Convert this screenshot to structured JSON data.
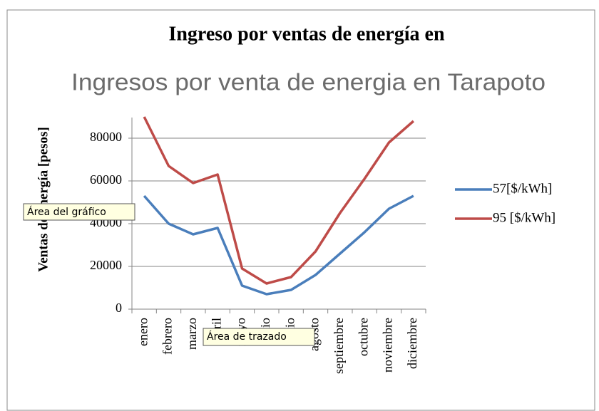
{
  "chart_data": {
    "type": "line",
    "title": "Ingreso por ventas de energía en",
    "annotations": [
      "Ingresos por venta de energia en Tarapoto"
    ],
    "ylabel": "Ventas de energía [pesos]",
    "categories": [
      "enero",
      "febrero",
      "marzo",
      "abril",
      "mayo",
      "junio",
      "julio",
      "agosto",
      "septiembre",
      "octubre",
      "noviembre",
      "diciembre"
    ],
    "series": [
      {
        "name": "57[$/kWh]",
        "color": "#4a7ebb",
        "values": [
          53000,
          40000,
          35000,
          38000,
          11000,
          7000,
          9000,
          16000,
          26000,
          36000,
          47000,
          53000
        ]
      },
      {
        "name": "95 [$/kWh]",
        "color": "#be4b48",
        "values": [
          90000,
          67000,
          59000,
          63000,
          19000,
          12000,
          15000,
          27000,
          45000,
          61000,
          78000,
          88000
        ]
      }
    ],
    "ylim": [
      0,
      100000
    ],
    "yticks": [
      0,
      20000,
      40000,
      60000,
      80000,
      100000
    ],
    "grid": true,
    "legend": "right"
  },
  "tooltips": [
    "Área del gráfico",
    "Área de trazado"
  ]
}
